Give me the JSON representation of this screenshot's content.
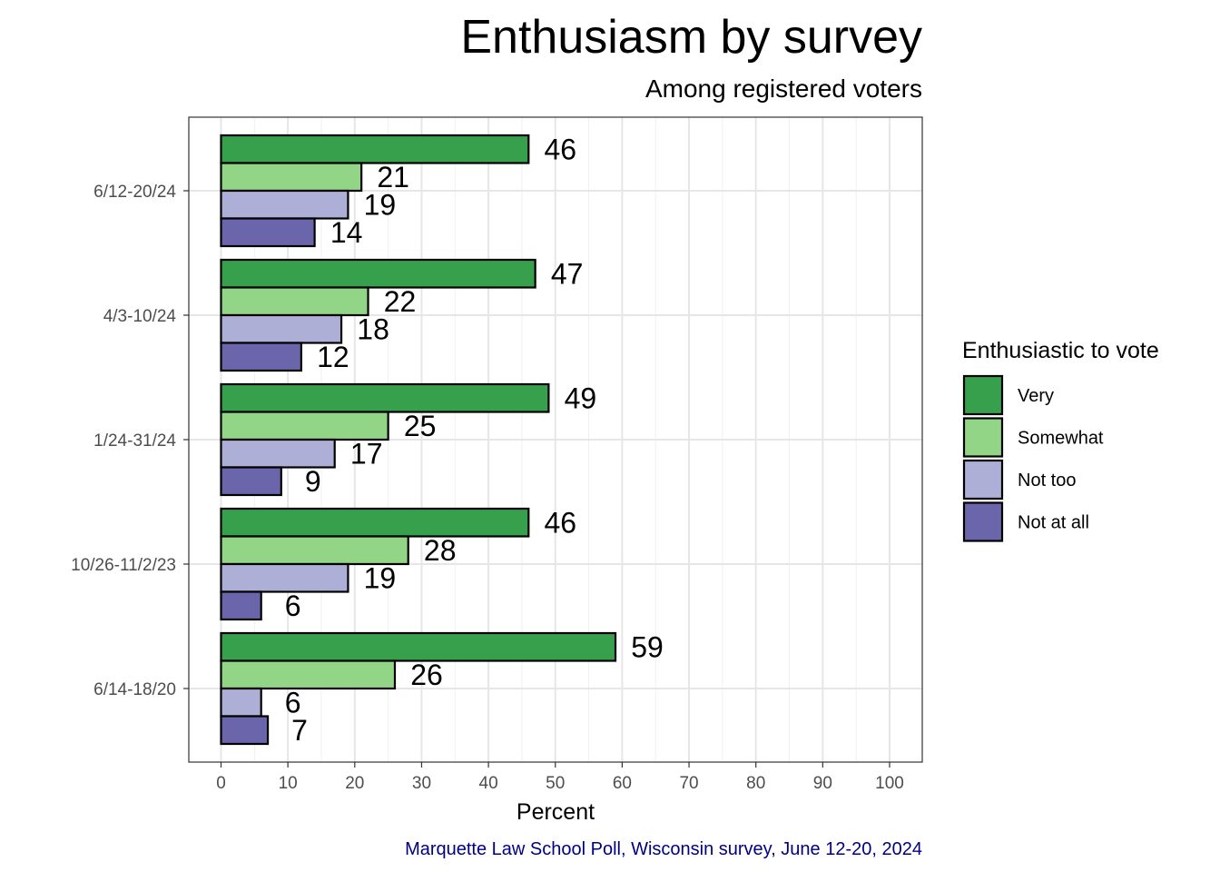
{
  "chart_data": {
    "type": "bar",
    "orientation": "horizontal",
    "title": "Enthusiasm by survey",
    "subtitle": "Among registered voters",
    "xlabel": "Percent",
    "ylabel": "",
    "xlim": [
      0,
      100
    ],
    "x_ticks": [
      0,
      10,
      20,
      30,
      40,
      50,
      60,
      70,
      80,
      90,
      100
    ],
    "grid": true,
    "categories": [
      "6/12-20/24",
      "4/3-10/24",
      "1/24-31/24",
      "10/26-11/2/23",
      "6/14-18/20"
    ],
    "series": [
      {
        "name": "Very",
        "color": "#37a04c",
        "values": [
          46,
          47,
          49,
          46,
          59
        ]
      },
      {
        "name": "Somewhat",
        "color": "#92d587",
        "values": [
          21,
          22,
          25,
          28,
          26
        ]
      },
      {
        "name": "Not too",
        "color": "#adafd7",
        "values": [
          19,
          18,
          17,
          19,
          6
        ]
      },
      {
        "name": "Not at all",
        "color": "#6b65ac",
        "values": [
          14,
          12,
          9,
          6,
          7
        ]
      }
    ],
    "legend": {
      "title": "Enthusiastic to vote",
      "placement": "right"
    },
    "caption": "Marquette Law School Poll, Wisconsin survey, June 12-20, 2024",
    "caption_color": "#000080"
  }
}
